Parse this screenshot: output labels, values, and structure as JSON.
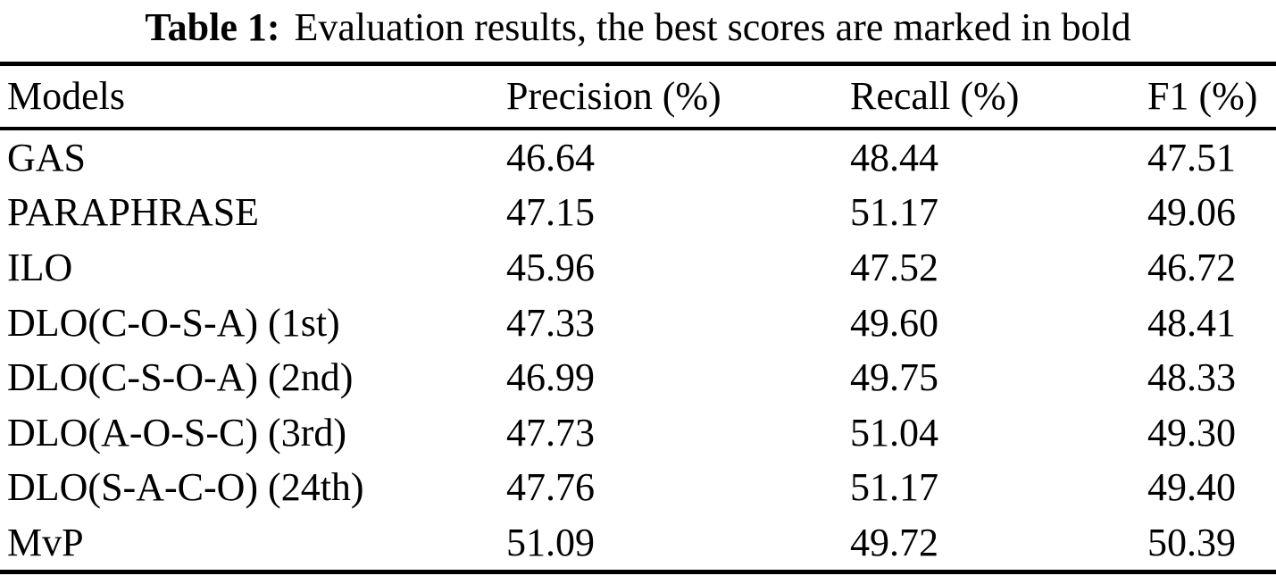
{
  "caption": {
    "label": "Table 1:",
    "text": "Evaluation results, the best scores are marked in bold"
  },
  "table": {
    "columns": [
      "Models",
      "Precision (%)",
      "Recall (%)",
      "F1 (%)"
    ],
    "rows": [
      {
        "cells": [
          {
            "t": "GAS",
            "b": false
          },
          {
            "t": "46.64",
            "b": false
          },
          {
            "t": "48.44",
            "b": false
          },
          {
            "t": "47.51",
            "b": false
          }
        ]
      },
      {
        "cells": [
          {
            "t": "PARAPHRASE",
            "b": false
          },
          {
            "t": "47.15",
            "b": false
          },
          {
            "t": "51.17",
            "b": true
          },
          {
            "t": "49.06",
            "b": false
          }
        ]
      },
      {
        "cells": [
          {
            "t": "ILO",
            "b": false
          },
          {
            "t": "45.96",
            "b": false
          },
          {
            "t": "47.52",
            "b": false
          },
          {
            "t": "46.72",
            "b": false
          }
        ]
      },
      {
        "cells": [
          {
            "t": "DLO(C-O-S-A) (1st)",
            "b": false
          },
          {
            "t": "47.33",
            "b": false
          },
          {
            "t": "49.60",
            "b": false
          },
          {
            "t": "48.41",
            "b": false
          }
        ]
      },
      {
        "cells": [
          {
            "t": "DLO(C-S-O-A) (2nd)",
            "b": false
          },
          {
            "t": "46.99",
            "b": false
          },
          {
            "t": "49.75",
            "b": false
          },
          {
            "t": "48.33",
            "b": false
          }
        ]
      },
      {
        "cells": [
          {
            "t": "DLO(A-O-S-C) (3rd)",
            "b": false
          },
          {
            "t": "47.73",
            "b": false
          },
          {
            "t": "51.04",
            "b": false
          },
          {
            "t": "49.30",
            "b": false
          }
        ]
      },
      {
        "cells": [
          {
            "t": "DLO(S-A-C-O) (24th)",
            "b": false
          },
          {
            "t": "47.76",
            "b": false
          },
          {
            "t": "51.17",
            "b": true
          },
          {
            "t": "49.40",
            "b": false
          }
        ]
      },
      {
        "cells": [
          {
            "t": "MvP",
            "b": false
          },
          {
            "t": "51.09",
            "b": true
          },
          {
            "t": "49.72",
            "b": false
          },
          {
            "t": "50.39",
            "b": true
          }
        ]
      }
    ]
  },
  "chart_data": {
    "type": "table",
    "title": "Table 1: Evaluation results, the best scores are marked in bold",
    "columns": [
      "Models",
      "Precision (%)",
      "Recall (%)",
      "F1 (%)"
    ],
    "rows": [
      [
        "GAS",
        46.64,
        48.44,
        47.51
      ],
      [
        "PARAPHRASE",
        47.15,
        51.17,
        49.06
      ],
      [
        "ILO",
        45.96,
        47.52,
        46.72
      ],
      [
        "DLO(C-O-S-A) (1st)",
        47.33,
        49.6,
        48.41
      ],
      [
        "DLO(C-S-O-A) (2nd)",
        46.99,
        49.75,
        48.33
      ],
      [
        "DLO(A-O-S-C) (3rd)",
        47.73,
        51.04,
        49.3
      ],
      [
        "DLO(S-A-C-O) (24th)",
        47.76,
        51.17,
        49.4
      ],
      [
        "MvP",
        51.09,
        49.72,
        50.39
      ]
    ],
    "bold_cells": [
      {
        "row": "PARAPHRASE",
        "column": "Recall (%)",
        "value": 51.17
      },
      {
        "row": "DLO(S-A-C-O) (24th)",
        "column": "Recall (%)",
        "value": 51.17
      },
      {
        "row": "MvP",
        "column": "Precision (%)",
        "value": 51.09
      },
      {
        "row": "MvP",
        "column": "F1 (%)",
        "value": 50.39
      }
    ]
  }
}
